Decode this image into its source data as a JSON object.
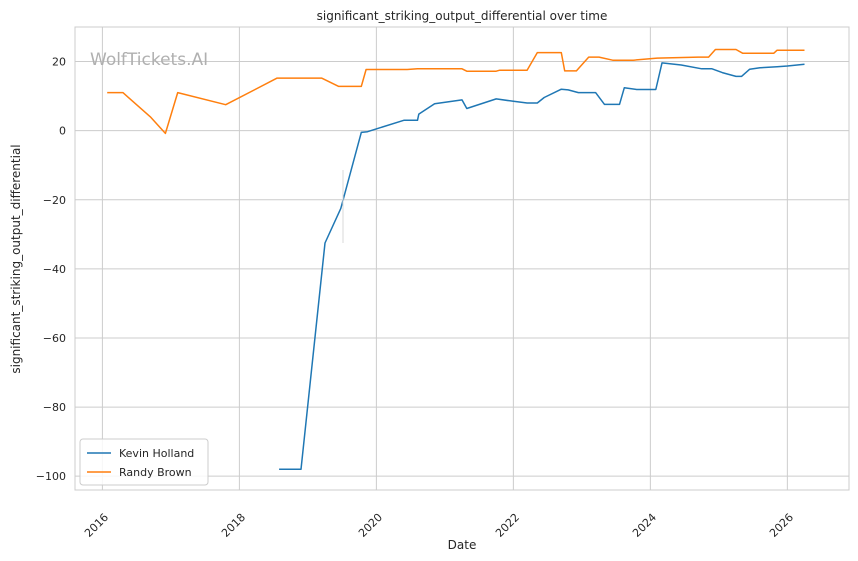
{
  "watermark": "WolfTickets.AI",
  "chart_data": {
    "type": "line",
    "title": "significant_striking_output_differential over time",
    "xlabel": "Date",
    "ylabel": "significant_striking_output_differential",
    "xlim": [
      2015.6,
      2026.9
    ],
    "ylim": [
      -104,
      30
    ],
    "xticks": [
      2016,
      2018,
      2020,
      2022,
      2024,
      2026
    ],
    "yticks": [
      -100,
      -80,
      -60,
      -40,
      -20,
      0,
      20
    ],
    "grid": true,
    "legend_position": "lower-left",
    "series": [
      {
        "name": "Kevin Holland",
        "color": "#1f77b4",
        "points": [
          [
            2018.58,
            -98
          ],
          [
            2018.9,
            -98
          ],
          [
            2019.25,
            -32.5
          ],
          [
            2019.48,
            -22.5
          ],
          [
            2019.78,
            -0.5
          ],
          [
            2019.87,
            -0.3
          ],
          [
            2020.4,
            3
          ],
          [
            2020.6,
            3
          ],
          [
            2020.62,
            4.8
          ],
          [
            2020.85,
            7.8
          ],
          [
            2021.25,
            8.9
          ],
          [
            2021.32,
            6.4
          ],
          [
            2021.75,
            9.2
          ],
          [
            2022.0,
            8.5
          ],
          [
            2022.2,
            8
          ],
          [
            2022.35,
            8
          ],
          [
            2022.45,
            9.6
          ],
          [
            2022.7,
            12
          ],
          [
            2022.8,
            11.8
          ],
          [
            2022.95,
            11
          ],
          [
            2023.2,
            11
          ],
          [
            2023.33,
            7.6
          ],
          [
            2023.55,
            7.6
          ],
          [
            2023.62,
            12.4
          ],
          [
            2023.8,
            11.9
          ],
          [
            2024.08,
            11.9
          ],
          [
            2024.17,
            19.6
          ],
          [
            2024.45,
            19
          ],
          [
            2024.75,
            17.9
          ],
          [
            2024.9,
            17.9
          ],
          [
            2025.05,
            16.8
          ],
          [
            2025.25,
            15.7
          ],
          [
            2025.33,
            15.7
          ],
          [
            2025.45,
            17.8
          ],
          [
            2025.6,
            18.2
          ],
          [
            2025.85,
            18.5
          ],
          [
            2026.0,
            18.7
          ],
          [
            2026.25,
            19.2
          ]
        ]
      },
      {
        "name": "Randy Brown",
        "color": "#ff7f0e",
        "points": [
          [
            2016.07,
            11
          ],
          [
            2016.3,
            11
          ],
          [
            2016.7,
            4
          ],
          [
            2016.92,
            -0.8
          ],
          [
            2017.1,
            11
          ],
          [
            2017.8,
            7.5
          ],
          [
            2018.55,
            15.2
          ],
          [
            2019.2,
            15.2
          ],
          [
            2019.45,
            12.8
          ],
          [
            2019.78,
            12.8
          ],
          [
            2019.85,
            17.7
          ],
          [
            2020.45,
            17.7
          ],
          [
            2020.6,
            17.9
          ],
          [
            2021.25,
            17.9
          ],
          [
            2021.32,
            17.2
          ],
          [
            2021.75,
            17.2
          ],
          [
            2021.8,
            17.5
          ],
          [
            2022.2,
            17.5
          ],
          [
            2022.35,
            22.6
          ],
          [
            2022.7,
            22.6
          ],
          [
            2022.75,
            17.3
          ],
          [
            2022.92,
            17.3
          ],
          [
            2023.1,
            21.3
          ],
          [
            2023.25,
            21.3
          ],
          [
            2023.45,
            20.4
          ],
          [
            2023.75,
            20.4
          ],
          [
            2024.1,
            21
          ],
          [
            2024.7,
            21.3
          ],
          [
            2024.85,
            21.3
          ],
          [
            2024.95,
            23.5
          ],
          [
            2025.25,
            23.5
          ],
          [
            2025.35,
            22.4
          ],
          [
            2025.8,
            22.4
          ],
          [
            2025.85,
            23.3
          ],
          [
            2026.25,
            23.3
          ]
        ]
      }
    ]
  }
}
